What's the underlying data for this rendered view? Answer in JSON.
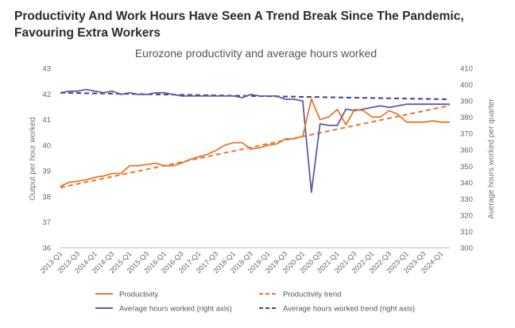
{
  "page": {
    "title": "Productivity And Work Hours Have Seen A Trend Break Since The Pandemic, Favouring Extra Workers"
  },
  "chart_data": {
    "type": "line",
    "title": "Eurozone productivity and average hours worked",
    "ylabel_left": "Output per hour worked",
    "ylabel_right": "Average hours worked per quarter",
    "ylim_left": [
      36,
      43
    ],
    "ylim_right": [
      300,
      410
    ],
    "yticks_left": [
      "36",
      "37",
      "38",
      "39",
      "40",
      "41",
      "42",
      "43"
    ],
    "yticks_right": [
      "300",
      "310",
      "320",
      "330",
      "340",
      "350",
      "360",
      "370",
      "380",
      "390",
      "400",
      "410"
    ],
    "x": [
      "2013-Q1",
      "2013-Q2",
      "2013-Q3",
      "2013-Q4",
      "2014-Q1",
      "2014-Q2",
      "2014-Q3",
      "2014-Q4",
      "2015-Q1",
      "2015-Q2",
      "2015-Q3",
      "2015-Q4",
      "2016-Q1",
      "2016-Q2",
      "2016-Q3",
      "2016-Q4",
      "2017-Q1",
      "2017-Q2",
      "2017-Q3",
      "2017-Q4",
      "2018-Q1",
      "2018-Q2",
      "2018-Q3",
      "2018-Q4",
      "2019-Q1",
      "2019-Q2",
      "2019-Q3",
      "2019-Q4",
      "2020-Q1",
      "2020-Q2",
      "2020-Q3",
      "2020-Q4",
      "2021-Q1",
      "2021-Q2",
      "2021-Q3",
      "2021-Q4",
      "2022-Q1",
      "2022-Q2",
      "2022-Q3",
      "2022-Q4",
      "2023-Q1",
      "2023-Q2",
      "2023-Q3",
      "2023-Q4",
      "2024-Q1",
      "2024-Q2"
    ],
    "xtick_labels": [
      "2013-Q1",
      "2013-Q3",
      "2014-Q1",
      "2014-Q3",
      "2015-Q1",
      "2015-Q3",
      "2016-Q1",
      "2016-Q3",
      "2017-Q1",
      "2017-Q3",
      "2018-Q1",
      "2018-Q3",
      "2019-Q1",
      "2019-Q3",
      "2020-Q1",
      "2020-Q3",
      "2021-Q1",
      "2021-Q3",
      "2022-Q1",
      "2022-Q3",
      "2023-Q1",
      "2023-Q3",
      "2024-Q1"
    ],
    "series": [
      {
        "name": "Productivity",
        "axis": "left",
        "style": "solid",
        "color": "#e8772e",
        "values": [
          38.4,
          38.55,
          38.6,
          38.65,
          38.75,
          38.8,
          38.9,
          38.9,
          39.2,
          39.2,
          39.25,
          39.3,
          39.2,
          39.2,
          39.3,
          39.45,
          39.55,
          39.65,
          39.8,
          40.0,
          40.1,
          40.1,
          39.85,
          39.9,
          40.0,
          40.05,
          40.25,
          40.25,
          40.35,
          41.8,
          41.0,
          41.1,
          41.4,
          40.8,
          41.4,
          41.35,
          41.1,
          41.1,
          41.35,
          41.2,
          40.9,
          40.9,
          40.9,
          40.95,
          40.9,
          40.9
        ]
      },
      {
        "name": "Productivity trend",
        "axis": "left",
        "style": "dashed",
        "color": "#e8772e",
        "values_endpoints": [
          38.35,
          41.55
        ]
      },
      {
        "name": "Average hours worked (right axis)",
        "axis": "right",
        "style": "solid",
        "color": "#5a5ea8",
        "values": [
          395,
          396,
          396,
          397,
          396,
          395,
          396,
          394,
          395,
          394,
          394,
          395,
          395,
          394,
          393,
          393,
          393,
          393,
          393,
          393,
          393,
          392,
          394,
          393,
          393,
          393,
          391,
          391,
          390,
          334,
          376,
          375,
          375,
          385,
          384,
          385,
          386,
          387,
          386,
          387,
          388,
          388,
          388,
          388,
          388,
          388
        ]
      },
      {
        "name": "Average hours worked trend (right axis)",
        "axis": "right",
        "style": "dashed",
        "color": "#3f4380",
        "values_endpoints": [
          395,
          391
        ]
      }
    ],
    "legend": "bottom",
    "grid": false
  }
}
